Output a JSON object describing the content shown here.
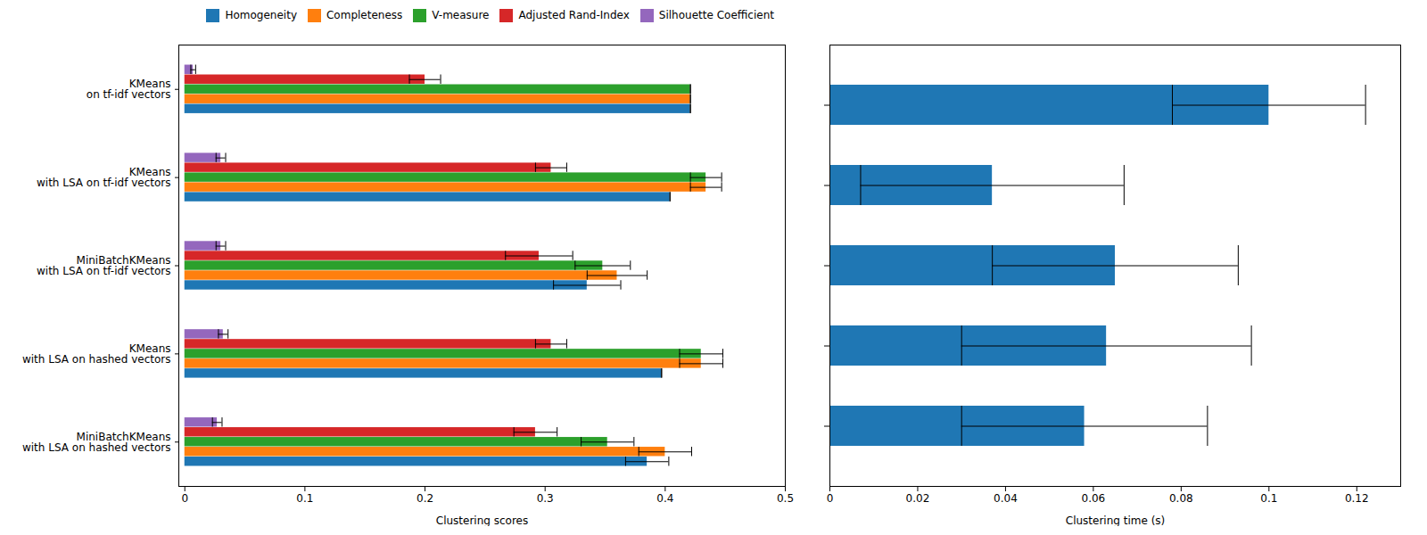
{
  "chart_data": [
    {
      "type": "bar",
      "orientation": "horizontal",
      "categories": [
        "KMeans\non tf-idf vectors",
        "KMeans\nwith LSA on tf-idf vectors",
        "MiniBatchKMeans\nwith LSA on tf-idf vectors",
        "KMeans\nwith LSA on hashed vectors",
        "MiniBatchKMeans\nwith LSA on hashed vectors"
      ],
      "series": [
        {
          "name": "Homogeneity",
          "color": "#1f77b4",
          "values": [
            0.421,
            0.404,
            0.335,
            0.397,
            0.385
          ],
          "errors": [
            0.0,
            0.0,
            0.028,
            0.0,
            0.018
          ]
        },
        {
          "name": "Completeness",
          "color": "#ff7f0e",
          "values": [
            0.421,
            0.434,
            0.36,
            0.43,
            0.4
          ],
          "errors": [
            0.0,
            0.013,
            0.025,
            0.018,
            0.022
          ]
        },
        {
          "name": "V-measure",
          "color": "#2ca02c",
          "values": [
            0.421,
            0.434,
            0.348,
            0.43,
            0.352
          ],
          "errors": [
            0.0,
            0.013,
            0.023,
            0.018,
            0.022
          ]
        },
        {
          "name": "Adjusted Rand-Index",
          "color": "#d62728",
          "values": [
            0.2,
            0.305,
            0.295,
            0.305,
            0.292
          ],
          "errors": [
            0.013,
            0.013,
            0.028,
            0.013,
            0.018
          ]
        },
        {
          "name": "Silhouette Coefficient",
          "color": "#9467bd",
          "values": [
            0.007,
            0.03,
            0.03,
            0.032,
            0.027
          ],
          "errors": [
            0.002,
            0.004,
            0.004,
            0.004,
            0.004
          ]
        }
      ],
      "xlabel": "Clustering scores",
      "xlim": [
        -0.005,
        0.5
      ],
      "xticks": [
        0,
        0.1,
        0.2,
        0.3,
        0.4,
        0.5
      ],
      "legend": "upper right",
      "grid": false
    },
    {
      "type": "bar",
      "orientation": "horizontal",
      "categories": [
        null,
        null,
        null,
        null,
        null
      ],
      "values": [
        0.1,
        0.037,
        0.065,
        0.063,
        0.058
      ],
      "errors": [
        0.022,
        0.03,
        0.028,
        0.033,
        0.028
      ],
      "color": "#1f77b4",
      "xlabel": "Clustering time (s)",
      "xlim": [
        0.0,
        0.13
      ],
      "xticks": [
        0,
        0.02,
        0.04,
        0.06,
        0.08,
        0.1,
        0.12
      ],
      "tick_labels": "x",
      "grid": false
    }
  ]
}
